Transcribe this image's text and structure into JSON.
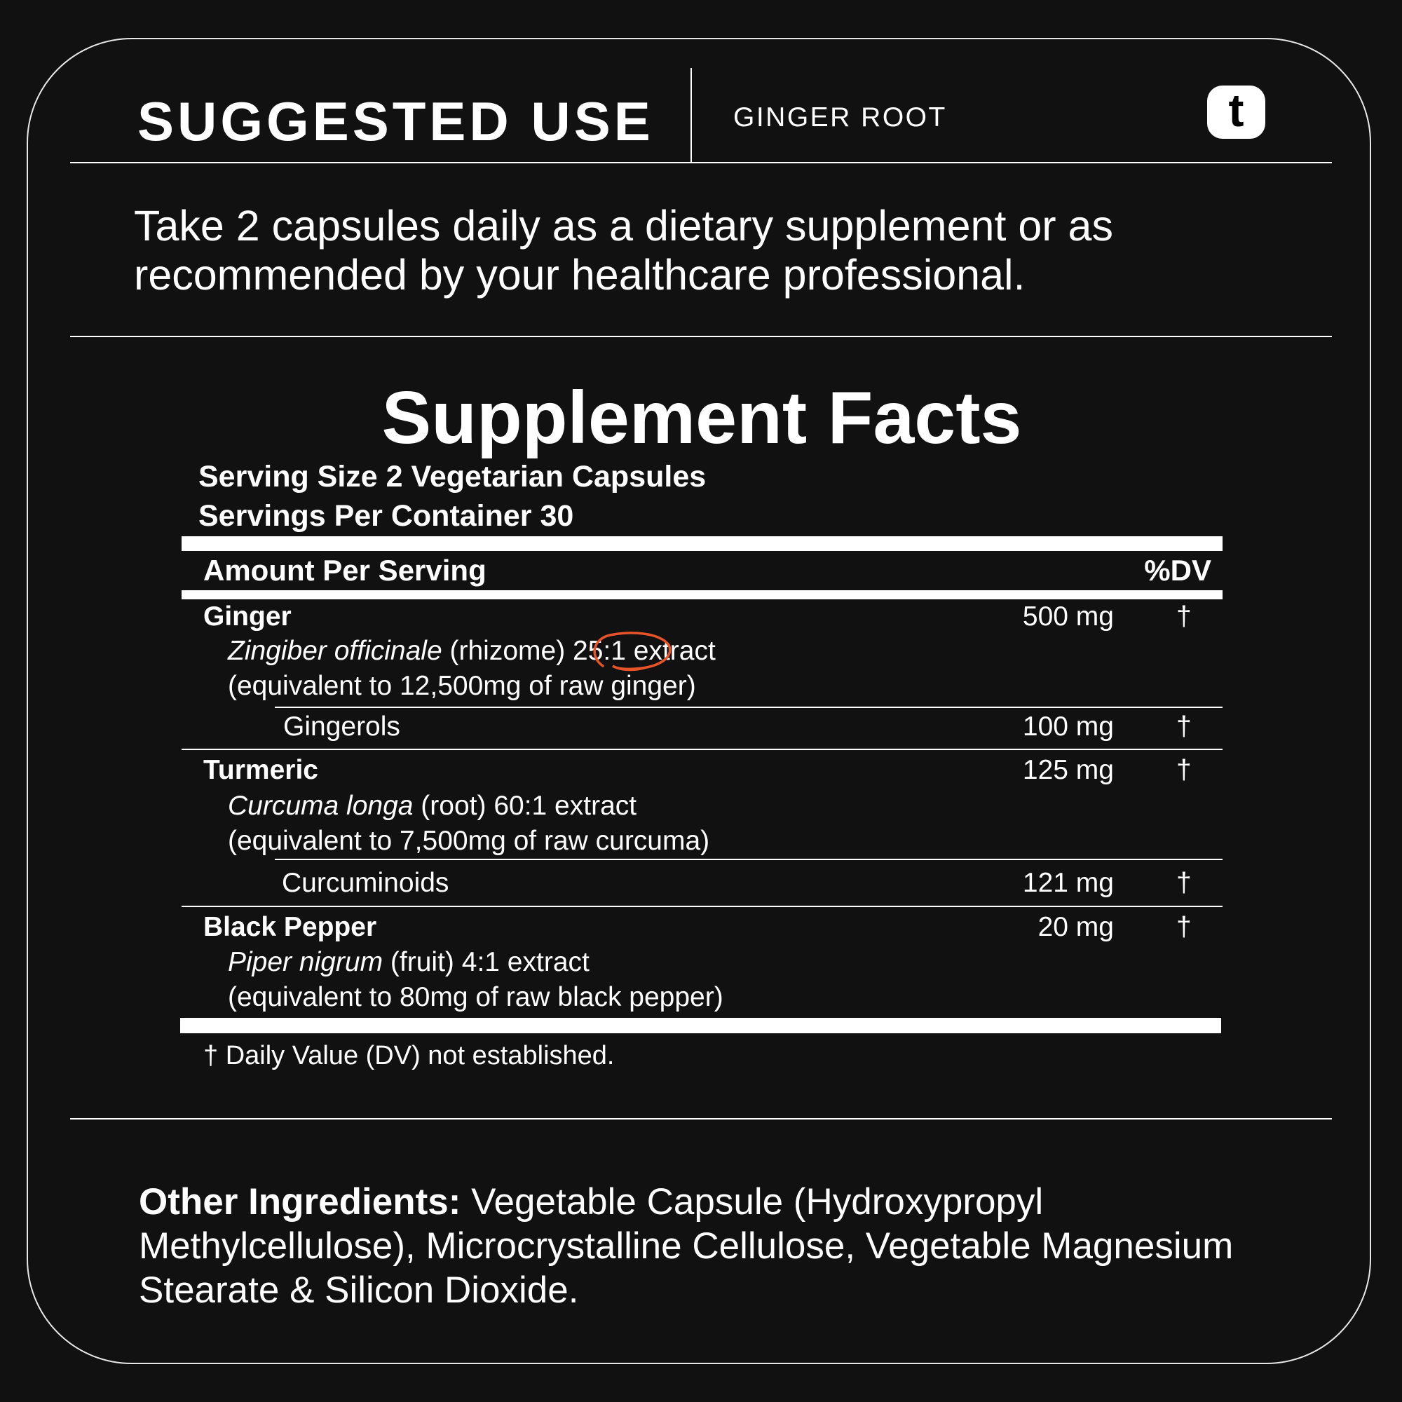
{
  "header": {
    "title": "SUGGESTED USE",
    "product": "GINGER ROOT",
    "logo_letter": "t"
  },
  "suggested_use": "Take 2 capsules daily as a dietary supplement or as recommended by your healthcare professional.",
  "facts": {
    "title": "Supplement Facts",
    "serving_size": "Serving Size 2 Vegetarian Capsules",
    "servings_per_container": "Servings Per Container 30",
    "amount_header": "Amount Per Serving",
    "dv_header": "%DV",
    "rows": [
      {
        "name": "Ginger",
        "amount": "500 mg",
        "dv": "†",
        "latin": "Zingiber officinale",
        "part": " (rhizome) ",
        "ratio": "25:1",
        "after": " extract",
        "equiv": "(equivalent to 12,500mg of raw ginger)"
      },
      {
        "name": "Gingerols",
        "amount": "100 mg",
        "dv": "†"
      },
      {
        "name": "Turmeric",
        "amount": "125 mg",
        "dv": "†",
        "latin": "Curcuma longa",
        "part": " (root) 60:1 extract",
        "equiv": "(equivalent to 7,500mg of raw curcuma)"
      },
      {
        "name": "Curcuminoids",
        "amount": "121 mg",
        "dv": "†"
      },
      {
        "name": "Black Pepper",
        "amount": "20 mg",
        "dv": "†",
        "latin": "Piper nigrum",
        "part": " (fruit) 4:1 extract",
        "equiv": "(equivalent to 80mg of raw black pepper)"
      }
    ],
    "footnote": "† Daily Value (DV) not established."
  },
  "other_ingredients": {
    "label": "Other Ingredients:",
    "text": " Vegetable Capsule (Hydroxypropyl Methylcellulose), Microcrystalline Cellulose, Vegetable Magnesium Stearate & Silicon Dioxide."
  },
  "colors": {
    "background": "#111111",
    "text": "#ffffff",
    "highlight_circle": "#e8542a"
  }
}
